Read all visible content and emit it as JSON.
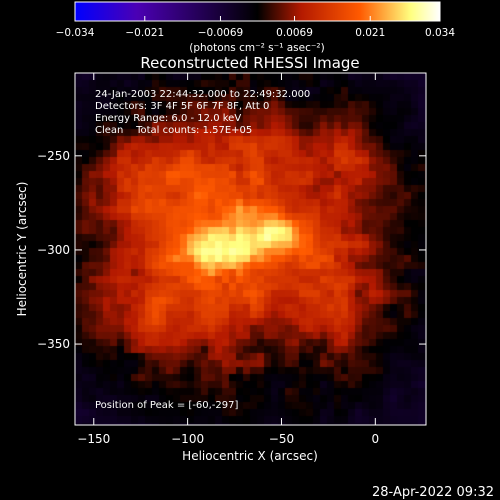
{
  "chart_data": {
    "type": "heatmap",
    "title": "Reconstructed RHESSI Image",
    "xlabel": "Heliocentric X (arcsec)",
    "ylabel": "Heliocentric Y (arcsec)",
    "xlim": [
      -160,
      27
    ],
    "ylim": [
      -393,
      -206
    ],
    "x_ticks": [
      -150,
      -100,
      -50,
      0
    ],
    "y_ticks": [
      -250,
      -300,
      -350
    ],
    "info_lines": [
      "24-Jan-2003 22:44:32.000 to 22:49:32.000",
      "Detectors: 3F 4F 5F 6F 7F 8F, Att 0",
      "Energy Range: 6.0 - 12.0 keV",
      "Clean    Total counts: 1.57E+05"
    ],
    "peak_label": "Position of Peak = [-60,-297]",
    "peak": [
      -60,
      -297
    ],
    "colorbar": {
      "ticks": [
        -0.034,
        -0.021,
        -0.0069,
        0.0069,
        0.021,
        0.034
      ],
      "tick_labels": [
        "−0.034",
        "−0.021",
        "−0.0069",
        "0.0069",
        "0.021",
        "0.034"
      ],
      "range": [
        -0.034,
        0.034
      ],
      "unit_label": "(photons cm⁻² s⁻¹ asec⁻²)"
    },
    "colormap": [
      "#0000ff",
      "#4b00b4",
      "#000000",
      "#b41a00",
      "#ff5a00",
      "#ffff80",
      "#ffffff"
    ],
    "blobs": [
      {
        "x": -75,
        "y": -297,
        "amp": 0.018,
        "sx": 38,
        "sy": 30
      },
      {
        "x": -85,
        "y": -298,
        "amp": 0.012,
        "sx": 11,
        "sy": 6
      },
      {
        "x": -55,
        "y": -293,
        "amp": 0.012,
        "sx": 11,
        "sy": 7
      },
      {
        "x": -125,
        "y": -262,
        "amp": 0.01,
        "sx": 18,
        "sy": 14
      },
      {
        "x": -120,
        "y": -335,
        "amp": 0.008,
        "sx": 20,
        "sy": 14
      },
      {
        "x": -15,
        "y": -250,
        "amp": 0.008,
        "sx": 14,
        "sy": 18
      },
      {
        "x": -20,
        "y": -330,
        "amp": 0.007,
        "sx": 14,
        "sy": 18
      },
      {
        "x": -75,
        "y": -245,
        "amp": 0.006,
        "sx": 26,
        "sy": 14
      }
    ],
    "background": 0.0025
  },
  "footer": {
    "timestamp": "28-Apr-2022 09:32"
  }
}
